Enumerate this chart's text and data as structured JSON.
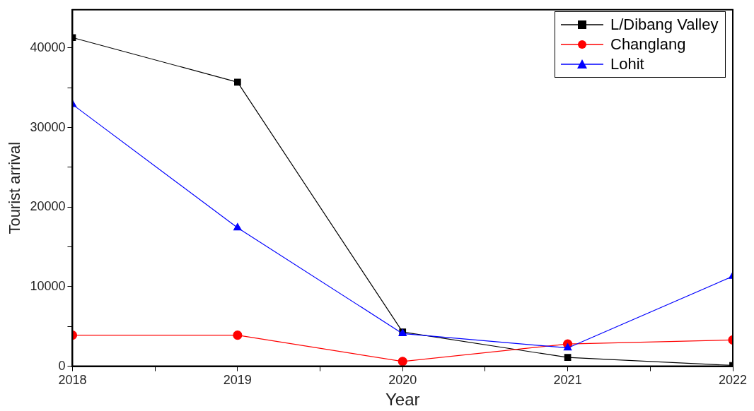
{
  "chart_data": {
    "type": "line",
    "xlabel": "Year",
    "ylabel": "Tourist arrival",
    "x": [
      2018,
      2019,
      2020,
      2021,
      2022
    ],
    "series": [
      {
        "name": "L/Dibang Valley",
        "color": "#000000",
        "marker": "square",
        "values": [
          41300,
          35700,
          4300,
          1100,
          100
        ]
      },
      {
        "name": "Changlang",
        "color": "#ff0000",
        "marker": "circle",
        "values": [
          3900,
          3900,
          600,
          2800,
          3300
        ]
      },
      {
        "name": "Lohit",
        "color": "#0000ff",
        "marker": "triangle",
        "values": [
          32900,
          17400,
          4100,
          2300,
          11300
        ]
      }
    ],
    "xlim": [
      2018,
      2022
    ],
    "xticks": [
      2018,
      {
        "value": 2018.5,
        "label": null
      },
      2019,
      {
        "value": 2019.5,
        "label": null
      },
      2020,
      {
        "value": 2020.5,
        "label": null
      },
      2021,
      {
        "value": 2021.5,
        "label": null
      },
      2022
    ],
    "ylim": [
      0,
      44800
    ],
    "yticks": [
      0,
      {
        "value": 5000,
        "label": null
      },
      10000,
      {
        "value": 15000,
        "label": null
      },
      20000,
      {
        "value": 25000,
        "label": null
      },
      30000,
      {
        "value": 35000,
        "label": null
      },
      40000
    ],
    "grid": false,
    "legend": "top right",
    "line_style": "solid"
  }
}
